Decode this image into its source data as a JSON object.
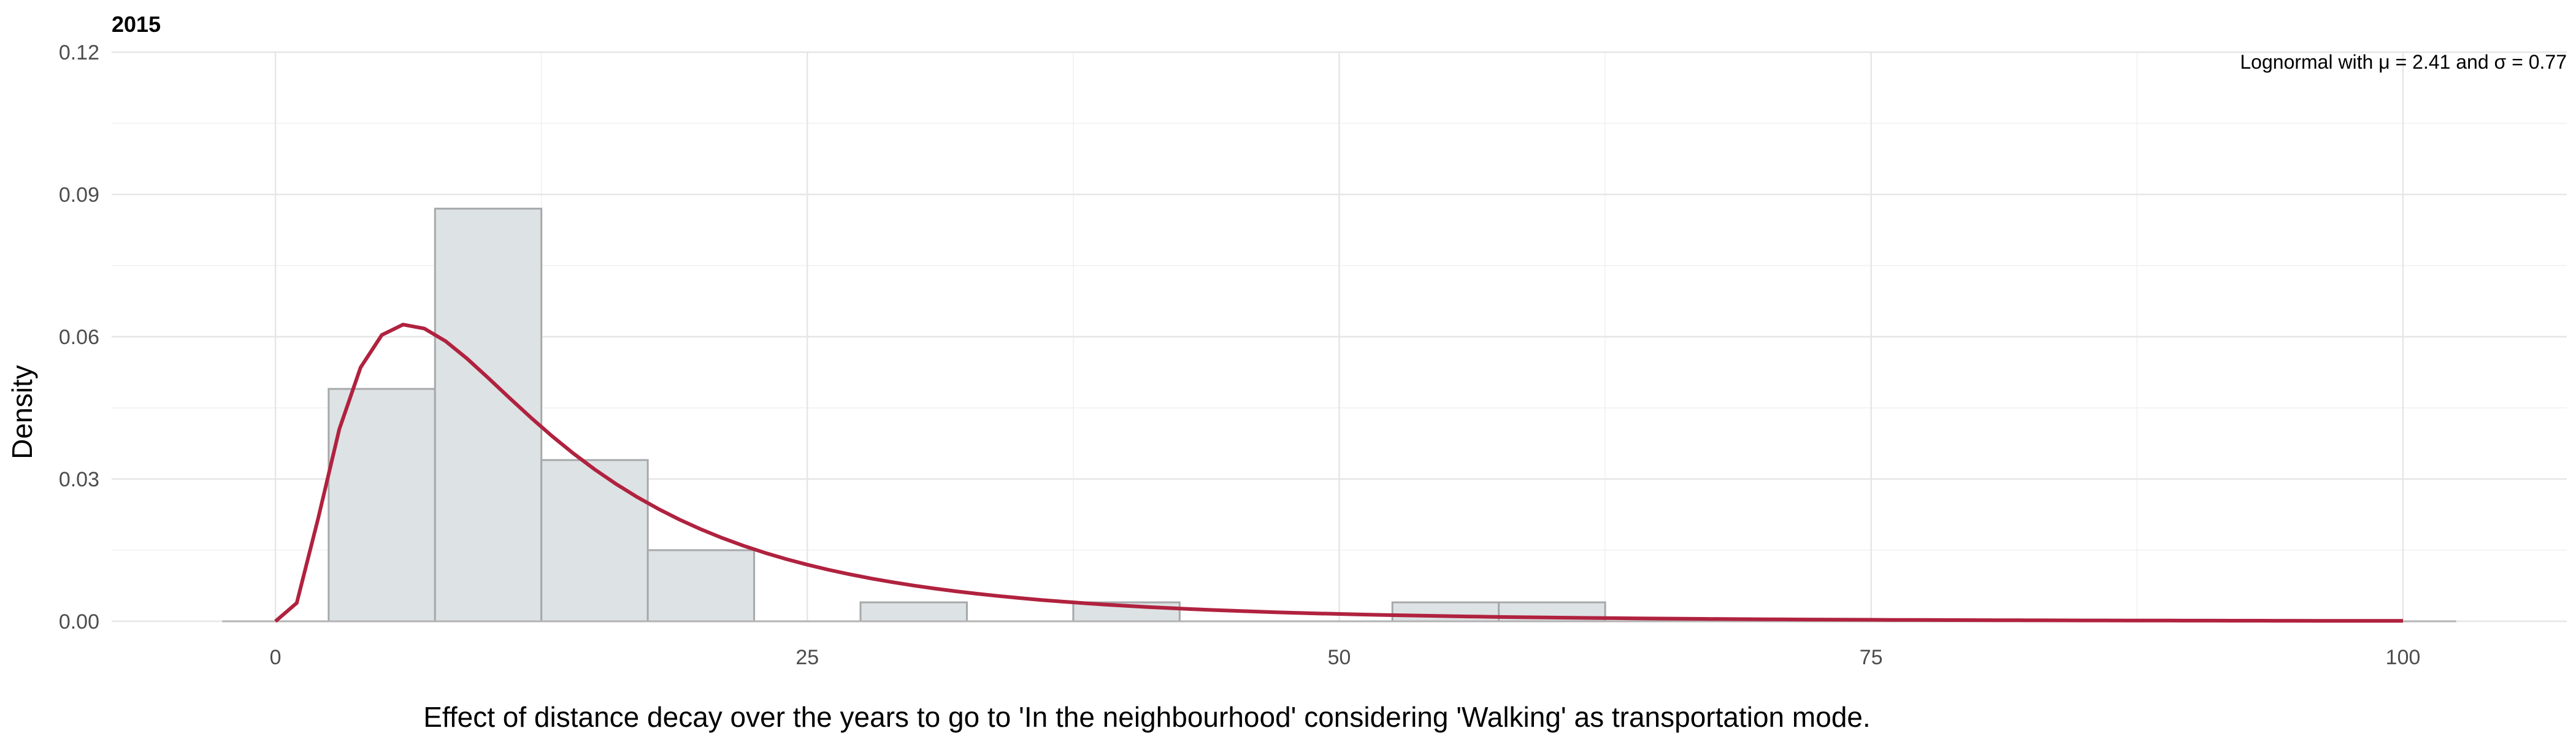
{
  "chart_data": {
    "type": "histogram",
    "title": "2015",
    "xlabel": "Effect of distance decay over the years to go to 'In the neighbourhood' considering 'Walking' as transportation mode.",
    "ylabel": "Density",
    "xlim": [
      -7.7,
      107.7
    ],
    "ylim": [
      0,
      0.12
    ],
    "x_ticks": [
      0,
      25,
      50,
      75,
      100
    ],
    "x_tick_labels": [
      "0",
      "25",
      "50",
      "75",
      "100"
    ],
    "y_ticks": [
      0,
      0.03,
      0.06,
      0.09,
      0.12
    ],
    "y_tick_labels": [
      "0.00",
      "0.03",
      "0.06",
      "0.09",
      "0.12"
    ],
    "grid": true,
    "bin_width": 5,
    "bars": [
      {
        "x0": 2.5,
        "x1": 7.5,
        "density": 0.049
      },
      {
        "x0": 7.5,
        "x1": 12.5,
        "density": 0.087
      },
      {
        "x0": 12.5,
        "x1": 17.5,
        "density": 0.034
      },
      {
        "x0": 17.5,
        "x1": 22.5,
        "density": 0.015
      },
      {
        "x0": 27.5,
        "x1": 32.5,
        "density": 0.004
      },
      {
        "x0": 37.5,
        "x1": 42.5,
        "density": 0.004
      },
      {
        "x0": 52.5,
        "x1": 57.5,
        "density": 0.004
      },
      {
        "x0": 57.5,
        "x1": 62.5,
        "density": 0.004
      }
    ],
    "baseline_range": [
      -2.5,
      102.5
    ],
    "fit": {
      "name": "Lognormal",
      "mu": 2.41,
      "sigma": 0.77,
      "x_range": [
        0,
        100
      ],
      "color": "#b0223f"
    },
    "annotation": {
      "prefix": "Lognormal with",
      "mu_symbol": "μ",
      "mu_value": "2.41",
      "joiner": "and",
      "sigma_symbol": "σ",
      "sigma_value": "0.77",
      "position": "top-right"
    }
  }
}
